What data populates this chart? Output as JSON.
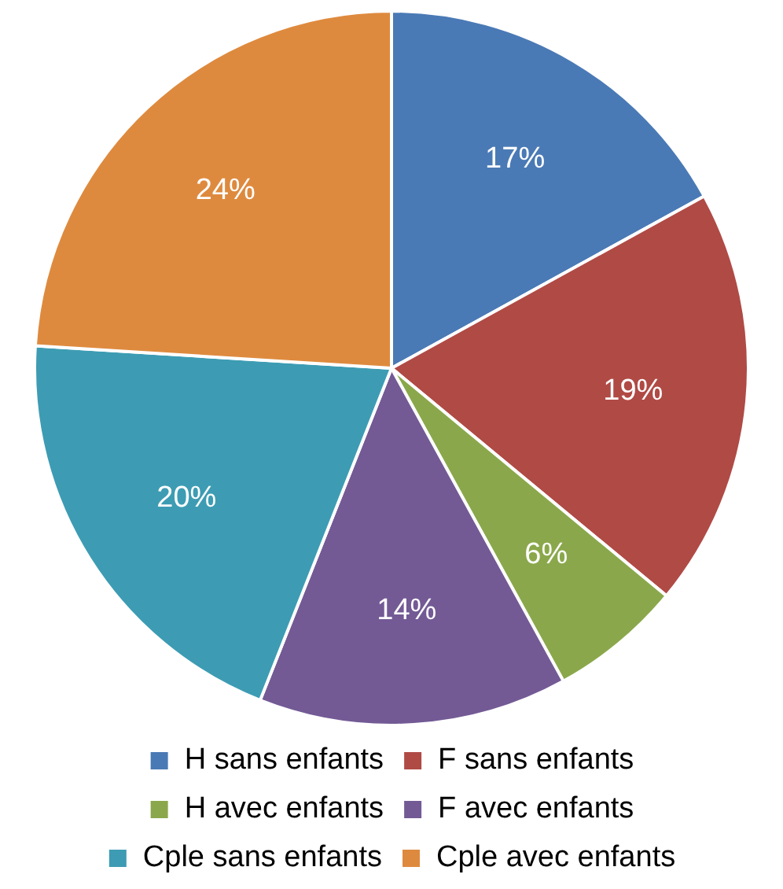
{
  "chart_data": {
    "type": "pie",
    "categories": [
      "H sans enfants",
      "F sans enfants",
      "H avec enfants",
      "F avec enfants",
      "Cple sans enfants",
      "Cple avec enfants"
    ],
    "values": [
      17,
      19,
      6,
      14,
      20,
      24
    ],
    "value_labels": [
      "17%",
      "19%",
      "6%",
      "14%",
      "20%",
      "24%"
    ],
    "colors": [
      "#4a7ab5",
      "#b04a45",
      "#8aa84b",
      "#735a95",
      "#3d9cb3",
      "#de8a3e"
    ],
    "legend": "bottom"
  }
}
